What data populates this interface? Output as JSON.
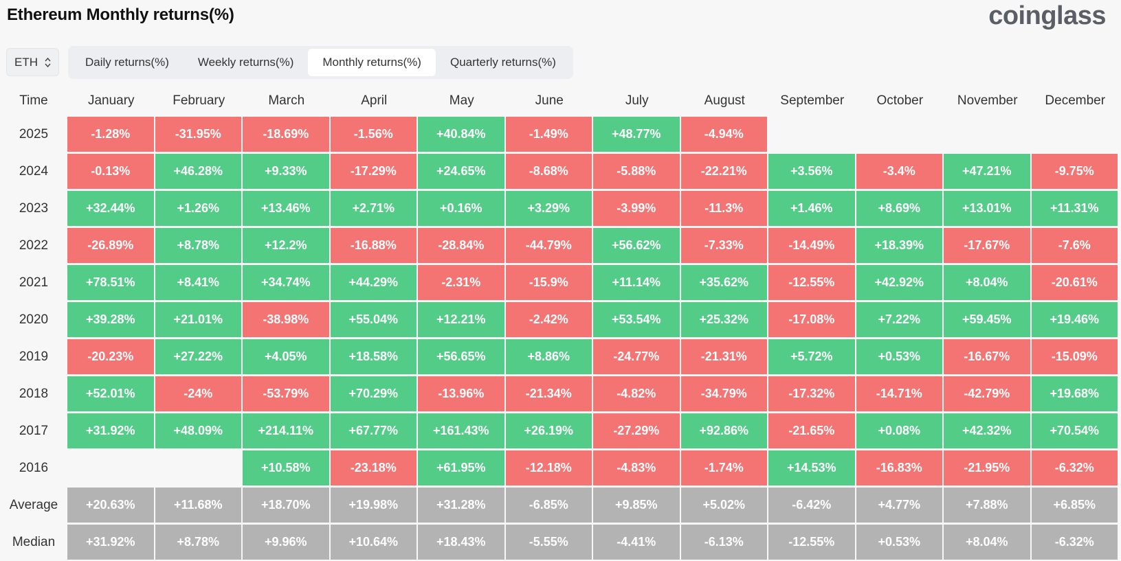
{
  "page": {
    "title": "Ethereum Monthly returns(%)",
    "logo": "coinglass"
  },
  "colors": {
    "positive": "#52cc87",
    "negative": "#f47373",
    "stat": "#b3b3b3"
  },
  "asset_select": {
    "value": "ETH",
    "icon": "up-down-chevron-icon"
  },
  "tabs": [
    {
      "label": "Daily returns(%)",
      "active": false
    },
    {
      "label": "Weekly returns(%)",
      "active": false
    },
    {
      "label": "Monthly returns(%)",
      "active": true
    },
    {
      "label": "Quarterly returns(%)",
      "active": false
    }
  ],
  "table": {
    "corner_label": "Time",
    "months": [
      "January",
      "February",
      "March",
      "April",
      "May",
      "June",
      "July",
      "August",
      "September",
      "October",
      "November",
      "December"
    ],
    "rows": [
      {
        "label": "2025",
        "values": [
          "-1.28%",
          "-31.95%",
          "-18.69%",
          "-1.56%",
          "+40.84%",
          "-1.49%",
          "+48.77%",
          "-4.94%",
          "",
          "",
          "",
          ""
        ]
      },
      {
        "label": "2024",
        "values": [
          "-0.13%",
          "+46.28%",
          "+9.33%",
          "-17.29%",
          "+24.65%",
          "-8.68%",
          "-5.88%",
          "-22.21%",
          "+3.56%",
          "-3.4%",
          "+47.21%",
          "-9.75%"
        ]
      },
      {
        "label": "2023",
        "values": [
          "+32.44%",
          "+1.26%",
          "+13.46%",
          "+2.71%",
          "+0.16%",
          "+3.29%",
          "-3.99%",
          "-11.3%",
          "+1.46%",
          "+8.69%",
          "+13.01%",
          "+11.31%"
        ]
      },
      {
        "label": "2022",
        "values": [
          "-26.89%",
          "+8.78%",
          "+12.2%",
          "-16.88%",
          "-28.84%",
          "-44.79%",
          "+56.62%",
          "-7.33%",
          "-14.49%",
          "+18.39%",
          "-17.67%",
          "-7.6%"
        ]
      },
      {
        "label": "2021",
        "values": [
          "+78.51%",
          "+8.41%",
          "+34.74%",
          "+44.29%",
          "-2.31%",
          "-15.9%",
          "+11.14%",
          "+35.62%",
          "-12.55%",
          "+42.92%",
          "+8.04%",
          "-20.61%"
        ]
      },
      {
        "label": "2020",
        "values": [
          "+39.28%",
          "+21.01%",
          "-38.98%",
          "+55.04%",
          "+12.21%",
          "-2.42%",
          "+53.54%",
          "+25.32%",
          "-17.08%",
          "+7.22%",
          "+59.45%",
          "+19.46%"
        ]
      },
      {
        "label": "2019",
        "values": [
          "-20.23%",
          "+27.22%",
          "+4.05%",
          "+18.58%",
          "+56.65%",
          "+8.86%",
          "-24.77%",
          "-21.31%",
          "+5.72%",
          "+0.53%",
          "-16.67%",
          "-15.09%"
        ]
      },
      {
        "label": "2018",
        "values": [
          "+52.01%",
          "-24%",
          "-53.79%",
          "+70.29%",
          "-13.96%",
          "-21.34%",
          "-4.82%",
          "-34.79%",
          "-17.32%",
          "-14.71%",
          "-42.79%",
          "+19.68%"
        ]
      },
      {
        "label": "2017",
        "values": [
          "+31.92%",
          "+48.09%",
          "+214.11%",
          "+67.77%",
          "+161.43%",
          "+26.19%",
          "-27.29%",
          "+92.86%",
          "-21.65%",
          "+0.08%",
          "+42.32%",
          "+70.54%"
        ]
      },
      {
        "label": "2016",
        "values": [
          "",
          "",
          "+10.58%",
          "-23.18%",
          "+61.95%",
          "-12.18%",
          "-4.83%",
          "-1.74%",
          "+14.53%",
          "-16.83%",
          "-21.95%",
          "-6.32%"
        ]
      },
      {
        "label": "Average",
        "stat": true,
        "values": [
          "+20.63%",
          "+11.68%",
          "+18.70%",
          "+19.98%",
          "+31.28%",
          "-6.85%",
          "+9.85%",
          "+5.02%",
          "-6.42%",
          "+4.77%",
          "+7.88%",
          "+6.85%"
        ]
      },
      {
        "label": "Median",
        "stat": true,
        "values": [
          "+31.92%",
          "+8.78%",
          "+9.96%",
          "+10.64%",
          "+18.43%",
          "-5.55%",
          "-4.41%",
          "-6.13%",
          "-12.55%",
          "+0.53%",
          "+8.04%",
          "-6.32%"
        ]
      }
    ]
  }
}
